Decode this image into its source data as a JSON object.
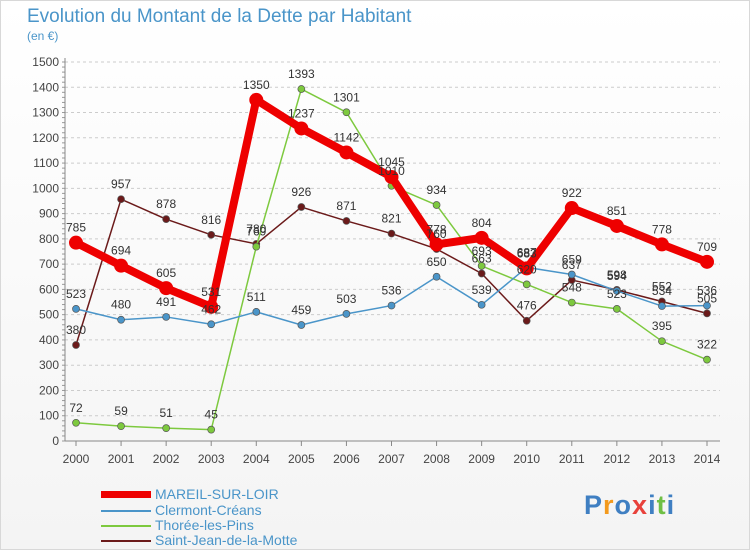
{
  "title": "Evolution du Montant de la Dette par Habitant",
  "unit_label": "(en €)",
  "logo": {
    "letters": [
      "P",
      "r",
      "o",
      "x",
      "i",
      "t",
      "i"
    ],
    "colors": [
      "#3f7fc2",
      "#f39a1d",
      "#3f7fc2",
      "#e8413b",
      "#3f7fc2",
      "#6fbf45",
      "#3f7fc2"
    ]
  },
  "chart_data": {
    "type": "line",
    "x": [
      "2000",
      "2001",
      "2002",
      "2003",
      "2004",
      "2005",
      "2006",
      "2007",
      "2008",
      "2009",
      "2010",
      "2011",
      "2012",
      "2013",
      "2014"
    ],
    "yticks": [
      0,
      100,
      200,
      300,
      400,
      500,
      600,
      700,
      800,
      900,
      1000,
      1100,
      1200,
      1300,
      1400,
      1500
    ],
    "ylim": [
      0,
      1500
    ],
    "grid": true,
    "legend_position": "bottom-left",
    "series": [
      {
        "name": "MAREIL-SUR-LOIR",
        "color": "#ee0000",
        "values": [
          785,
          694,
          605,
          531,
          1350,
          1237,
          1142,
          1045,
          778,
          804,
          683,
          922,
          851,
          778,
          709
        ]
      },
      {
        "name": "Clermont-Créans",
        "color": "#4a95c9",
        "values": [
          523,
          480,
          491,
          462,
          511,
          459,
          503,
          536,
          650,
          539,
          687,
          659,
          594,
          534,
          536
        ]
      },
      {
        "name": "Thorée-les-Pins",
        "color": "#7dc93e",
        "values": [
          72,
          59,
          51,
          45,
          769,
          1393,
          1301,
          1010,
          934,
          693,
          620,
          548,
          523,
          395,
          322
        ]
      },
      {
        "name": "Saint-Jean-de-la-Motte",
        "color": "#6b1a1a",
        "values": [
          380,
          957,
          878,
          816,
          780,
          926,
          871,
          821,
          760,
          663,
          476,
          637,
          598,
          552,
          505
        ]
      }
    ]
  }
}
